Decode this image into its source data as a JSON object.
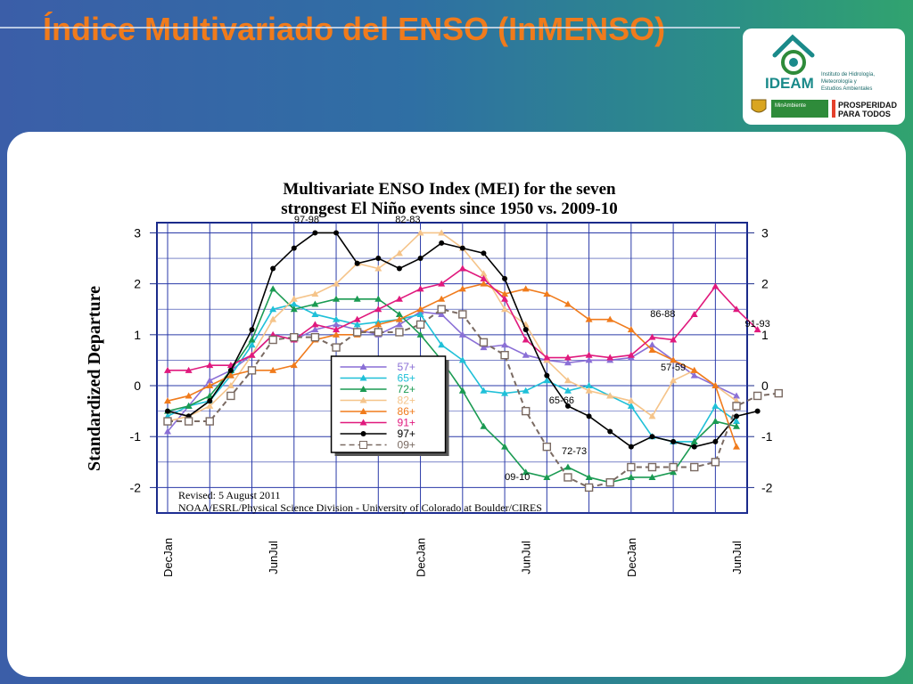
{
  "slide": {
    "title": "Índice Multivariado del ENSO (InMENSO)"
  },
  "logo": {
    "org_name": "IDEAM",
    "org_subtitle": [
      "Instituto de Hidrología,",
      "Meteorología y",
      "Estudios Ambientales"
    ],
    "ministry": "MinAmbiente",
    "slogan": [
      "PROSPERIDAD",
      "PARA TODOS"
    ],
    "colors": {
      "brand_teal": "#1a8a8a",
      "brand_green": "#2e8b3a",
      "slogan_black": "#111111"
    }
  },
  "chart_data": {
    "type": "line",
    "title_lines": [
      "Multivariate ENSO Index (MEI) for the seven",
      "strongest El Niño events since 1950 vs. 2009-10"
    ],
    "ylabel": "Standardized Departure",
    "ylim": [
      -2.5,
      3.2
    ],
    "yticks": [
      -2,
      -1,
      0,
      1,
      2,
      3
    ],
    "x_tick_labels": [
      "DecJan",
      "JunJul",
      "DecJan",
      "JunJul",
      "DecJan",
      "JunJul"
    ],
    "x_tick_positions": [
      0,
      5,
      12,
      17,
      22,
      27
    ],
    "x_count": 27,
    "grid": true,
    "footer": [
      "Revised: 5 August 2011",
      "NOAA/ESRL/Physical Science Division - University of Colorado at Boulder/CIRES"
    ],
    "legend_position": "center-left",
    "series": [
      {
        "name": "57+",
        "color": "#8a6fd6",
        "marker": "triangle",
        "dashed": false,
        "values": [
          -0.9,
          -0.4,
          0.1,
          0.3,
          0.6,
          1.0,
          0.9,
          1.1,
          1.2,
          1.1,
          1.0,
          1.2,
          1.45,
          1.4,
          1.0,
          0.75,
          0.8,
          0.6,
          0.5,
          0.45,
          0.5,
          0.5,
          0.55,
          0.8,
          0.5,
          0.2,
          0.0,
          -0.2
        ]
      },
      {
        "name": "65+",
        "color": "#1fc0d8",
        "marker": "triangle",
        "dashed": false,
        "values": [
          -0.6,
          -0.4,
          -0.3,
          0.2,
          0.8,
          1.5,
          1.6,
          1.4,
          1.3,
          1.2,
          1.25,
          1.3,
          1.4,
          0.8,
          0.5,
          -0.1,
          -0.15,
          -0.1,
          0.1,
          -0.1,
          0.0,
          -0.2,
          -0.4,
          -1.0,
          -1.1,
          -1.1,
          -0.4,
          -0.7
        ]
      },
      {
        "name": "72+",
        "color": "#1a9a52",
        "marker": "triangle",
        "dashed": false,
        "values": [
          -0.5,
          -0.4,
          -0.2,
          0.3,
          0.9,
          1.9,
          1.5,
          1.6,
          1.7,
          1.7,
          1.7,
          1.4,
          1.0,
          0.5,
          -0.1,
          -0.8,
          -1.2,
          -1.7,
          -1.8,
          -1.6,
          -1.8,
          -1.9,
          -1.8,
          -1.8,
          -1.7,
          -1.1,
          -0.7,
          -0.8
        ]
      },
      {
        "name": "82+",
        "color": "#f5c48a",
        "marker": "triangle",
        "dashed": false,
        "values": [
          -0.7,
          -0.6,
          -0.4,
          0.0,
          0.6,
          1.3,
          1.7,
          1.8,
          2.0,
          2.4,
          2.3,
          2.6,
          3.0,
          3.0,
          2.7,
          2.2,
          1.5,
          1.2,
          0.5,
          0.1,
          -0.1,
          -0.2,
          -0.3,
          -0.6,
          0.1,
          0.3,
          0.0,
          -0.3
        ]
      },
      {
        "name": "86+",
        "color": "#f07b1c",
        "marker": "triangle",
        "dashed": false,
        "values": [
          -0.3,
          -0.2,
          0.0,
          0.2,
          0.3,
          0.3,
          0.4,
          0.9,
          1.0,
          1.0,
          1.2,
          1.3,
          1.5,
          1.7,
          1.9,
          2.0,
          1.8,
          1.9,
          1.8,
          1.6,
          1.3,
          1.3,
          1.1,
          0.7,
          0.5,
          0.3,
          0.0,
          -1.2
        ]
      },
      {
        "name": "91+",
        "color": "#e0197d",
        "marker": "triangle",
        "dashed": false,
        "values": [
          0.3,
          0.3,
          0.4,
          0.4,
          0.6,
          1.0,
          0.9,
          1.2,
          1.1,
          1.3,
          1.5,
          1.7,
          1.9,
          2.0,
          2.3,
          2.1,
          1.7,
          0.9,
          0.55,
          0.55,
          0.6,
          0.55,
          0.6,
          0.95,
          0.9,
          1.4,
          1.95,
          1.5,
          1.1
        ]
      },
      {
        "name": "97+",
        "color": "#000000",
        "marker": "circle",
        "dashed": false,
        "values": [
          -0.5,
          -0.6,
          -0.3,
          0.3,
          1.1,
          2.3,
          2.7,
          3.0,
          3.0,
          2.4,
          2.5,
          2.3,
          2.5,
          2.8,
          2.7,
          2.6,
          2.1,
          1.1,
          0.2,
          -0.4,
          -0.6,
          -0.9,
          -1.2,
          -1.0,
          -1.1,
          -1.2,
          -1.1,
          -0.6,
          -0.5
        ]
      },
      {
        "name": "09+",
        "color": "#7a6a62",
        "marker": "square",
        "dashed": true,
        "values": [
          -0.7,
          -0.7,
          -0.7,
          -0.2,
          0.3,
          0.9,
          0.95,
          0.95,
          0.75,
          1.05,
          1.05,
          1.05,
          1.2,
          1.5,
          1.4,
          0.85,
          0.6,
          -0.5,
          -1.2,
          -1.8,
          -2.0,
          -1.9,
          -1.6,
          -1.6,
          -1.6,
          -1.6,
          -1.5,
          -0.4,
          -0.2,
          -0.15
        ]
      }
    ],
    "annotations": [
      {
        "text": "97-98",
        "x": 6.6,
        "y": 3.2
      },
      {
        "text": "82-83",
        "x": 11.4,
        "y": 3.2
      },
      {
        "text": "86-88",
        "x": 23.5,
        "y": 1.35
      },
      {
        "text": "91-93",
        "x": 28.0,
        "y": 1.15
      },
      {
        "text": "57-59",
        "x": 24.0,
        "y": 0.3
      },
      {
        "text": "65-66",
        "x": 18.7,
        "y": -0.35
      },
      {
        "text": "72-73",
        "x": 19.3,
        "y": -1.35
      },
      {
        "text": "09-10",
        "x": 16.6,
        "y": -1.85
      }
    ]
  }
}
